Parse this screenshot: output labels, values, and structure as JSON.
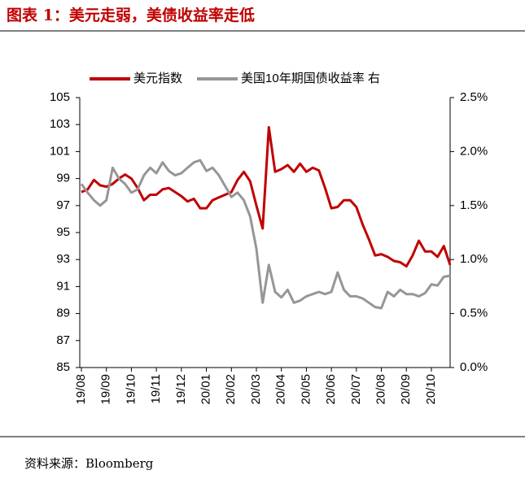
{
  "chart_data": {
    "type": "line",
    "title": "图表 1：美元走弱，美债收益率走低",
    "source": "资料来源：Bloomberg",
    "categories": [
      "19/08",
      null,
      null,
      null,
      "19/09",
      null,
      null,
      null,
      "19/10",
      null,
      null,
      null,
      "19/11",
      null,
      null,
      null,
      "19/12",
      null,
      null,
      null,
      "20/01",
      null,
      null,
      null,
      "20/02",
      null,
      null,
      null,
      "20/03",
      null,
      null,
      null,
      "20/04",
      null,
      null,
      null,
      "20/05",
      null,
      null,
      null,
      "20/06",
      null,
      null,
      null,
      "20/07",
      null,
      null,
      null,
      "20/08",
      null,
      null,
      null,
      "20/09",
      null,
      null,
      null,
      "20/10",
      null,
      null,
      null
    ],
    "series": [
      {
        "name": "美元指数",
        "color": "#c00000",
        "values": [
          98.0,
          98.2,
          98.9,
          98.5,
          98.4,
          98.6,
          99.0,
          99.3,
          99.0,
          98.3,
          97.4,
          97.8,
          97.8,
          98.2,
          98.3,
          98.0,
          97.7,
          97.3,
          97.5,
          96.8,
          96.8,
          97.4,
          97.6,
          97.8,
          98.0,
          98.9,
          99.5,
          98.8,
          97.0,
          95.3,
          102.8,
          99.5,
          99.7,
          100.0,
          99.5,
          100.1,
          99.5,
          99.8,
          99.6,
          98.3,
          96.8,
          96.9,
          97.4,
          97.4,
          96.9,
          95.6,
          94.5,
          93.3,
          93.4,
          93.2,
          92.9,
          92.8,
          92.5,
          93.3,
          94.4,
          93.6,
          93.6,
          93.2,
          94.0,
          92.6
        ]
      },
      {
        "name": "美国10年期国债收益率 右",
        "color": "#969696",
        "axis": "y2",
        "values": [
          1.7,
          1.62,
          1.55,
          1.5,
          1.55,
          1.85,
          1.75,
          1.7,
          1.62,
          1.65,
          1.78,
          1.85,
          1.8,
          1.9,
          1.82,
          1.78,
          1.8,
          1.85,
          1.9,
          1.92,
          1.82,
          1.85,
          1.78,
          1.68,
          1.58,
          1.62,
          1.55,
          1.4,
          1.1,
          0.6,
          0.95,
          0.7,
          0.65,
          0.72,
          0.6,
          0.62,
          0.66,
          0.68,
          0.7,
          0.68,
          0.7,
          0.88,
          0.72,
          0.66,
          0.66,
          0.64,
          0.6,
          0.56,
          0.55,
          0.7,
          0.66,
          0.72,
          0.68,
          0.68,
          0.66,
          0.69,
          0.77,
          0.76,
          0.84,
          0.85
        ]
      }
    ],
    "ylim": [
      85,
      105
    ],
    "yticks": [
      85,
      87,
      89,
      91,
      93,
      95,
      97,
      99,
      101,
      103,
      105
    ],
    "y2lim": [
      0,
      2.5
    ],
    "y2ticks": [
      {
        "value": 0,
        "label": "0.0%"
      },
      {
        "value": 0.5,
        "label": "0.5%"
      },
      {
        "value": 1,
        "label": "1.0%"
      },
      {
        "value": 1.5,
        "label": "1.5%"
      },
      {
        "value": 2,
        "label": "2.0%"
      },
      {
        "value": 2.5,
        "label": "2.5%"
      }
    ],
    "legend": "top"
  }
}
